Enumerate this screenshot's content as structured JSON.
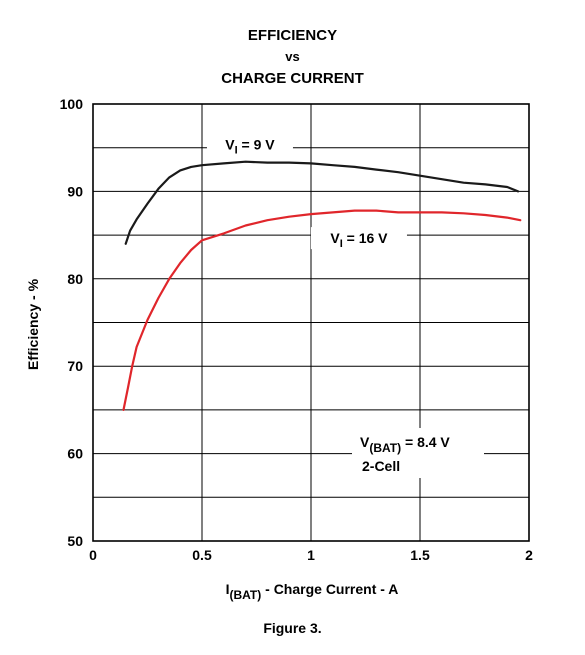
{
  "chart_data": {
    "type": "line",
    "title": [
      "EFFICIENCY",
      "vs",
      "CHARGE CURRENT"
    ],
    "xlabel": "I(BAT) - Charge Current - A",
    "xlabel_parts": {
      "main": "I",
      "sub": "(BAT)",
      "rest": " - Charge Current - A"
    },
    "ylabel": "Efficiency - %",
    "xlim": [
      0,
      2
    ],
    "ylim": [
      50,
      100
    ],
    "x_ticks": [
      0,
      0.5,
      1,
      1.5,
      2
    ],
    "x_tick_labels": [
      "0",
      "0.5",
      "1",
      "1.5",
      "2"
    ],
    "y_ticks": [
      50,
      60,
      70,
      80,
      90,
      100
    ],
    "y_tick_labels": [
      "50",
      "60",
      "70",
      "80",
      "90",
      "100"
    ],
    "y_minor_grid": [
      55,
      65,
      75,
      85,
      95
    ],
    "grid": true,
    "series": [
      {
        "name": "VI = 9 V",
        "label_main": "V",
        "label_sub": "I",
        "label_rest": " = 9 V",
        "color": "#1a1a1a",
        "x": [
          0.15,
          0.17,
          0.2,
          0.25,
          0.3,
          0.35,
          0.4,
          0.45,
          0.5,
          0.6,
          0.7,
          0.8,
          0.9,
          1.0,
          1.1,
          1.2,
          1.3,
          1.4,
          1.5,
          1.6,
          1.7,
          1.8,
          1.9,
          1.95
        ],
        "y": [
          84.0,
          85.5,
          86.8,
          88.6,
          90.3,
          91.6,
          92.4,
          92.8,
          93.0,
          93.2,
          93.4,
          93.3,
          93.3,
          93.2,
          93.0,
          92.8,
          92.5,
          92.2,
          91.8,
          91.4,
          91.0,
          90.8,
          90.5,
          90.0
        ]
      },
      {
        "name": "VI = 16 V",
        "label_main": "V",
        "label_sub": "I",
        "label_rest": " = 16 V",
        "color": "#e0262b",
        "x": [
          0.14,
          0.16,
          0.18,
          0.2,
          0.25,
          0.3,
          0.35,
          0.4,
          0.45,
          0.5,
          0.6,
          0.7,
          0.8,
          0.9,
          1.0,
          1.1,
          1.2,
          1.3,
          1.4,
          1.5,
          1.6,
          1.7,
          1.8,
          1.9,
          1.96
        ],
        "y": [
          65.0,
          67.5,
          70.0,
          72.2,
          75.3,
          77.8,
          80.0,
          81.8,
          83.3,
          84.4,
          85.2,
          86.1,
          86.7,
          87.1,
          87.4,
          87.6,
          87.8,
          87.8,
          87.6,
          87.6,
          87.6,
          87.5,
          87.3,
          87.0,
          86.7
        ]
      }
    ],
    "annotation": {
      "main": "V",
      "sub": "(BAT)",
      "rest": " = 8.4 V",
      "line2": "2-Cell"
    }
  },
  "caption": "Figure 3."
}
